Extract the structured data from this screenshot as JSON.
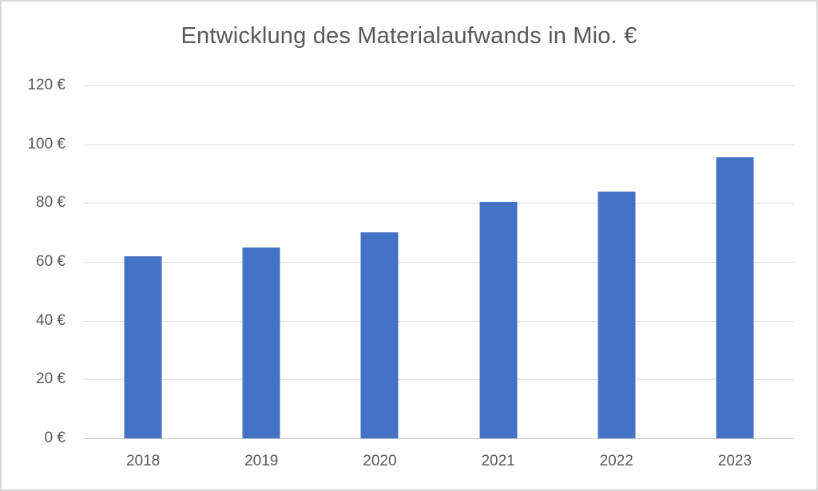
{
  "chart_data": {
    "type": "bar",
    "title": "Entwicklung des Materialaufwands in Mio. €",
    "categories": [
      "2018",
      "2019",
      "2020",
      "2021",
      "2022",
      "2023"
    ],
    "values": [
      62,
      65,
      70,
      80.5,
      84,
      95.5
    ],
    "y_ticks": [
      "120 €",
      "100 €",
      "80 €",
      "60 €",
      "40 €",
      "20 €",
      "0 €"
    ],
    "y_tick_values": [
      120,
      100,
      80,
      60,
      40,
      20,
      0
    ],
    "ylim": [
      0,
      120
    ],
    "xlabel": "",
    "ylabel": "",
    "grid": true,
    "legend": false,
    "colors": {
      "bar": "#4472C4",
      "text": "#595959",
      "gridline": "#DCDCDC",
      "axis_line": "#C6C6C6",
      "border": "#D9D9D9",
      "background": "#FFFFFF"
    }
  }
}
